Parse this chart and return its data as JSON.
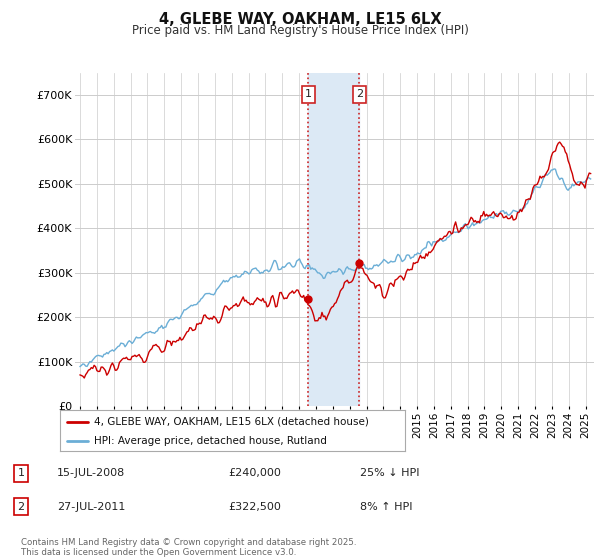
{
  "title1": "4, GLEBE WAY, OAKHAM, LE15 6LX",
  "title2": "Price paid vs. HM Land Registry's House Price Index (HPI)",
  "ylim": [
    0,
    750000
  ],
  "yticks": [
    0,
    100000,
    200000,
    300000,
    400000,
    500000,
    600000,
    700000
  ],
  "ytick_labels": [
    "£0",
    "£100K",
    "£200K",
    "£300K",
    "£400K",
    "£500K",
    "£600K",
    "£700K"
  ],
  "xlim_start": 1994.7,
  "xlim_end": 2025.5,
  "transaction1_x": 2008.54,
  "transaction1_y": 240000,
  "transaction2_x": 2011.57,
  "transaction2_y": 322500,
  "transaction1_label": "15-JUL-2008",
  "transaction1_price": "£240,000",
  "transaction1_hpi": "25% ↓ HPI",
  "transaction2_label": "27-JUL-2011",
  "transaction2_price": "£322,500",
  "transaction2_hpi": "8% ↑ HPI",
  "legend1": "4, GLEBE WAY, OAKHAM, LE15 6LX (detached house)",
  "legend2": "HPI: Average price, detached house, Rutland",
  "footnote": "Contains HM Land Registry data © Crown copyright and database right 2025.\nThis data is licensed under the Open Government Licence v3.0.",
  "hpi_color": "#6BAED6",
  "price_color": "#CC0000",
  "shade_color": "#DCE9F5",
  "background_color": "#FFFFFF"
}
